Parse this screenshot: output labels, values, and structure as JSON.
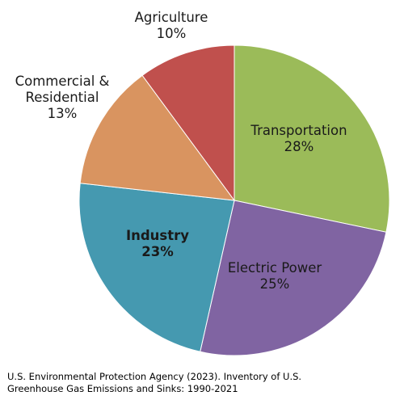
{
  "chart_data": {
    "type": "pie",
    "title": "",
    "slices": [
      {
        "label_lines": [
          "Transportation"
        ],
        "percent_text": "28%",
        "value": 28,
        "color": "#9bbb59",
        "bold": false
      },
      {
        "label_lines": [
          "Electric Power"
        ],
        "percent_text": "25%",
        "value": 25,
        "color": "#8064a2",
        "bold": false
      },
      {
        "label_lines": [
          "Industry"
        ],
        "percent_text": "23%",
        "value": 23,
        "color": "#4599b0",
        "bold": true
      },
      {
        "label_lines": [
          "Commercial &",
          "Residential"
        ],
        "percent_text": "13%",
        "value": 13,
        "color": "#d99460",
        "bold": false
      },
      {
        "label_lines": [
          "Agriculture"
        ],
        "percent_text": "10%",
        "value": 10,
        "color": "#c0504d",
        "bold": false
      }
    ],
    "start": "12 o'clock",
    "direction": "clockwise"
  },
  "source": {
    "line1": "U.S. Environmental Protection Agency (2023). Inventory of U.S.",
    "line2": "Greenhouse Gas Emissions and Sinks: 1990-2021"
  }
}
